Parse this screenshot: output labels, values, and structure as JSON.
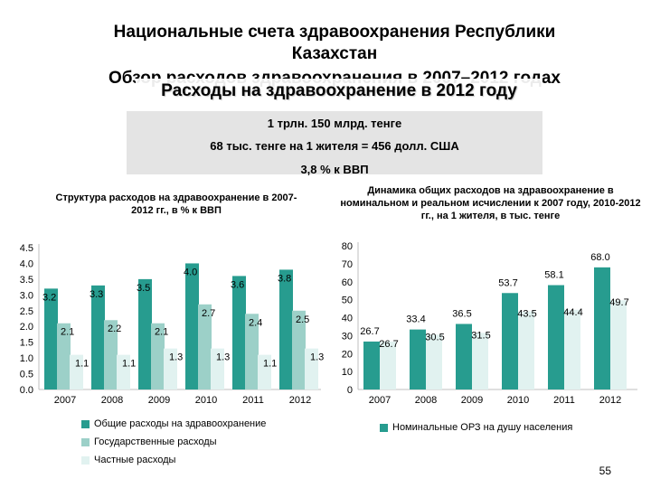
{
  "header": {
    "title_line1": "Национальные счета здравоохранения Республики",
    "title_line2": "Казахстан",
    "title_line3": "Обзор расходов здравоохранения в 2007–2012 годах",
    "subtitle": "Расходы на здравоохранение в 2012 году"
  },
  "summary": {
    "line1": "1 трлн. 150 млрд. тенге",
    "line2": "68 тыс. тенге на 1 жителя = 456 долл. США",
    "line3": "3,8 % к ВВП"
  },
  "colors": {
    "total": "#279c8f",
    "government": "#9cd0c8",
    "private": "#e1f2f0",
    "per_capita_nominal": "#279c8f",
    "per_capita_real": "#e1f2f0"
  },
  "chart_data": [
    {
      "type": "bar",
      "title": "Структура расходов на здравоохранение в 2007-2012 гг., в % к ВВП",
      "categories": [
        "2007",
        "2008",
        "2009",
        "2010",
        "2011",
        "2012"
      ],
      "ylim": [
        0,
        4.5
      ],
      "yticks": [
        "0.0",
        "0.5",
        "1.0",
        "1.5",
        "2.0",
        "2.5",
        "3.0",
        "3.5",
        "4.0",
        "4.5"
      ],
      "legend_position": "bottom",
      "grid": false,
      "series": [
        {
          "name": "Общие расходы на здравоохранение",
          "values": [
            3.2,
            3.3,
            3.5,
            4.0,
            3.6,
            3.8
          ],
          "labels": [
            "3.2",
            "3.3",
            "3.5",
            "4.0",
            "3.6",
            "3.8"
          ]
        },
        {
          "name": "Государственные расходы",
          "values": [
            2.1,
            2.2,
            2.1,
            2.7,
            2.4,
            2.5
          ],
          "labels": [
            "2.1",
            "2.2",
            "2.1",
            "2.7",
            "2.4",
            "2.5"
          ]
        },
        {
          "name": "Частные расходы",
          "values": [
            1.1,
            1.1,
            1.3,
            1.3,
            1.1,
            1.3
          ],
          "labels": [
            "1.1",
            "1.1",
            "1.3",
            "1.3",
            "1.1",
            "1.3"
          ]
        }
      ]
    },
    {
      "type": "bar",
      "title": "Динамика общих расходов на здравоохранение в номинальном и реальном исчислении к 2007 году, 2010-2012 гг., на 1 жителя, в тыс. тенге",
      "categories": [
        "2007",
        "2008",
        "2009",
        "2010",
        "2011",
        "2012"
      ],
      "ylim": [
        0,
        80
      ],
      "yticks": [
        "0",
        "10",
        "20",
        "30",
        "40",
        "50",
        "60",
        "70",
        "80"
      ],
      "legend_position": "bottom",
      "grid": false,
      "series": [
        {
          "name": "Номинальные ОРЗ на душу населения",
          "values": [
            26.7,
            33.4,
            36.5,
            53.7,
            58.1,
            68.0
          ],
          "labels": [
            "26.7",
            "33.4",
            "36.5",
            "53.7",
            "58.1",
            "68.0"
          ]
        },
        {
          "name": "",
          "values": [
            26.7,
            30.5,
            31.5,
            43.5,
            44.4,
            49.7
          ],
          "labels": [
            "26.7",
            "30.5",
            "31.5",
            "43.5",
            "44.4",
            "49.7"
          ]
        }
      ]
    }
  ],
  "page_number": "55"
}
